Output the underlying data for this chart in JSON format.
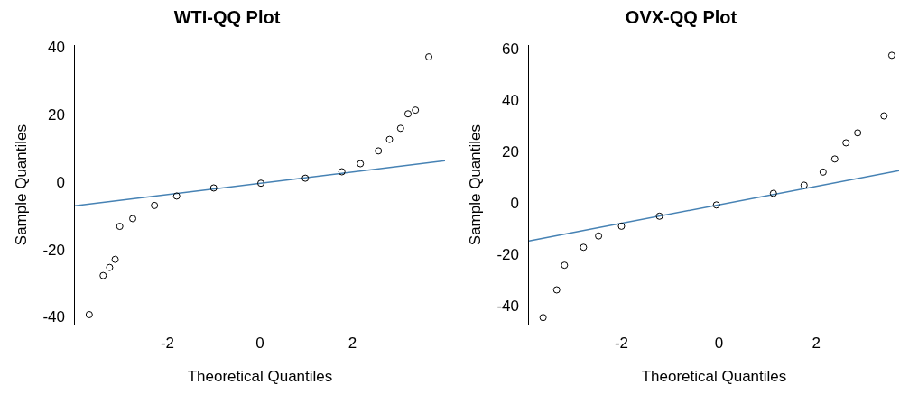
{
  "chart_data": [
    {
      "type": "scatter",
      "title": "WTI-QQ Plot",
      "xlabel": "Theoretical Quantiles",
      "ylabel": "Sample Quantiles",
      "xlim": [
        -4,
        4
      ],
      "ylim": [
        -42,
        41
      ],
      "xticks": [
        -2,
        0,
        2
      ],
      "yticks": [
        -40,
        -20,
        0,
        20,
        40
      ],
      "grid": false,
      "legend": false,
      "marker": "circle",
      "series": [
        {
          "color": "#000000",
          "x": [
            -3.69,
            -3.39,
            -3.25,
            -3.13,
            -3.03,
            -2.75,
            -2.28,
            -1.8,
            -1.0,
            0.02,
            0.98,
            1.77,
            2.17,
            2.56,
            2.8,
            3.04,
            3.2,
            3.36,
            3.65
          ],
          "values": [
            -39,
            -27.4,
            -25,
            -22.6,
            -12.8,
            -10.5,
            -6.6,
            -3.8,
            -1.4,
            0,
            1.5,
            3.4,
            5.8,
            9.6,
            13,
            16.3,
            20.6,
            21.7,
            37.5
          ]
        },
        {
          "type": "line",
          "color": "#4682b4",
          "marker": "none",
          "x": [
            -4,
            4
          ],
          "values": [
            -6.7,
            6.7
          ]
        }
      ]
    },
    {
      "type": "scatter",
      "title": "OVX-QQ Plot",
      "xlabel": "Theoretical Quantiles",
      "ylabel": "Sample Quantiles",
      "xlim": [
        -3.9,
        3.7
      ],
      "ylim": [
        -47,
        62
      ],
      "xticks": [
        -2,
        0,
        2
      ],
      "yticks": [
        -40,
        -20,
        0,
        20,
        40,
        60
      ],
      "grid": false,
      "legend": false,
      "marker": "circle",
      "series": [
        {
          "color": "#000000",
          "x": [
            -3.61,
            -3.33,
            -3.17,
            -2.78,
            -2.47,
            -2.0,
            -1.22,
            -0.05,
            1.12,
            1.75,
            2.14,
            2.38,
            2.61,
            2.85,
            3.39,
            3.55
          ],
          "values": [
            -44.2,
            -33.4,
            -23.8,
            -16.8,
            -12.4,
            -8.6,
            -4.7,
            -0.3,
            4.2,
            7.4,
            12.5,
            17.6,
            23.9,
            27.8,
            34.4,
            58
          ]
        },
        {
          "type": "line",
          "color": "#4682b4",
          "marker": "none",
          "x": [
            -3.9,
            3.7
          ],
          "values": [
            -14.3,
            13.1
          ]
        }
      ]
    }
  ]
}
